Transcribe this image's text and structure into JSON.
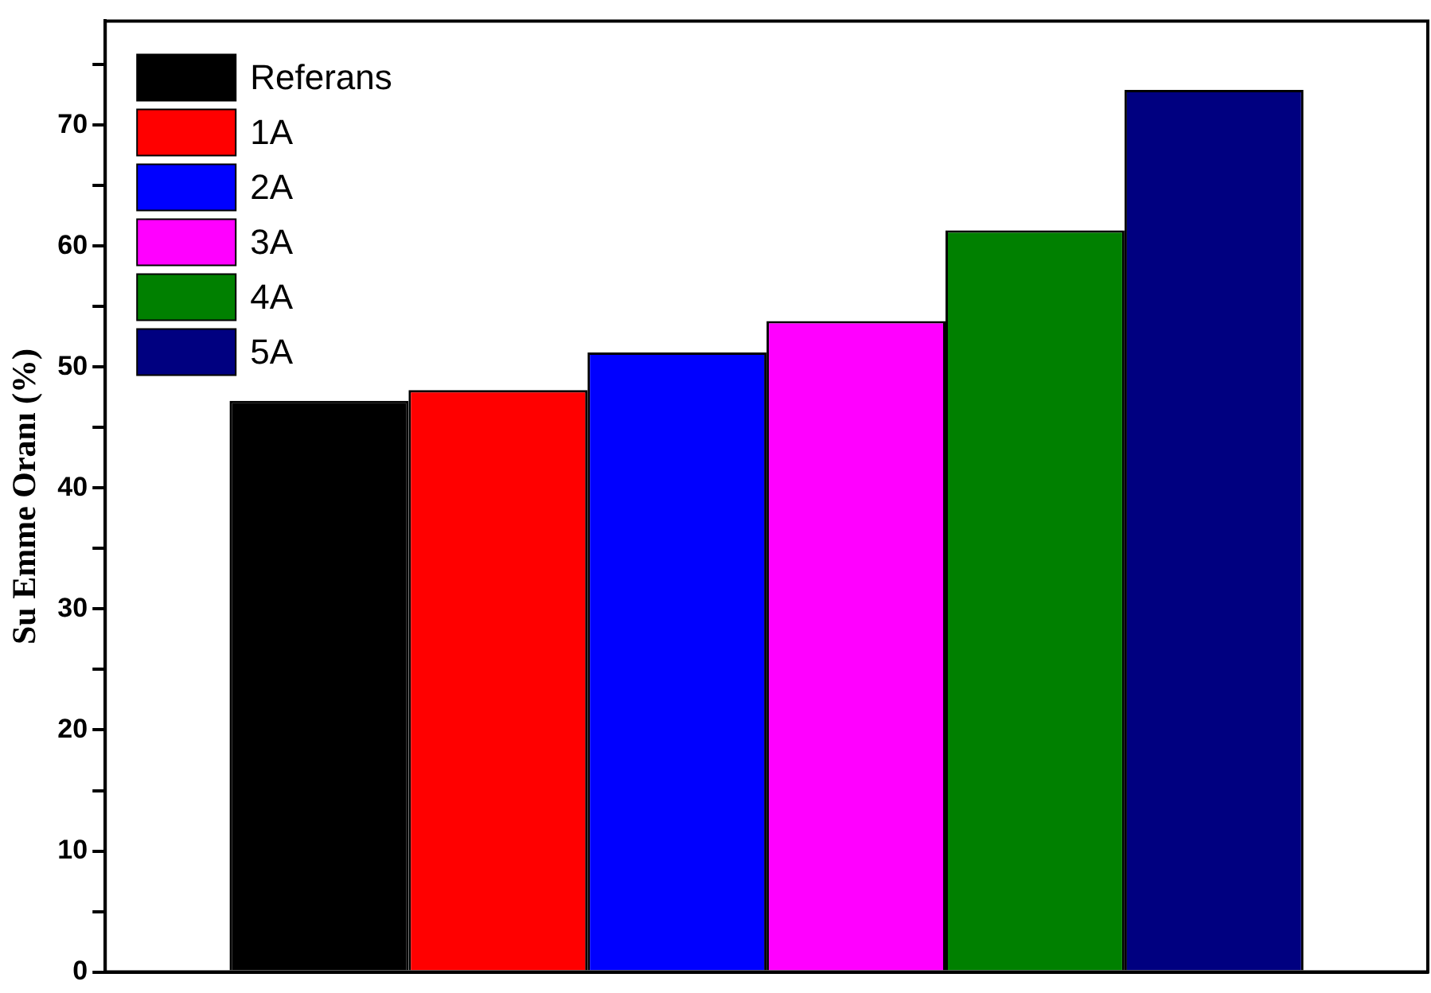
{
  "chart_data": {
    "type": "bar",
    "ylabel": "Su Emme Oranı (%)",
    "categories": [
      null
    ],
    "series": [
      {
        "name": "Referans",
        "color": "#000000",
        "values": [
          47.2
        ]
      },
      {
        "name": "1A",
        "color": "#ff0000",
        "values": [
          48.1
        ]
      },
      {
        "name": "2A",
        "color": "#0000ff",
        "values": [
          51.2
        ]
      },
      {
        "name": "3A",
        "color": "#ff00ff",
        "values": [
          53.8
        ]
      },
      {
        "name": "4A",
        "color": "#008000",
        "values": [
          61.3
        ]
      },
      {
        "name": "5A",
        "color": "#000080",
        "values": [
          72.9
        ]
      }
    ],
    "ylim": [
      0,
      78.6
    ],
    "yticks": [
      0,
      {
        "value": 5,
        "label": null
      },
      10,
      {
        "value": 15,
        "label": null
      },
      20,
      {
        "value": 25,
        "label": null
      },
      30,
      {
        "value": 35,
        "label": null
      },
      40,
      {
        "value": 45,
        "label": null
      },
      50,
      {
        "value": 55,
        "label": null
      },
      60,
      {
        "value": 65,
        "label": null
      },
      70,
      {
        "value": 75,
        "label": null
      }
    ],
    "grid": false,
    "legend": "top left",
    "tick_labels": "y"
  }
}
